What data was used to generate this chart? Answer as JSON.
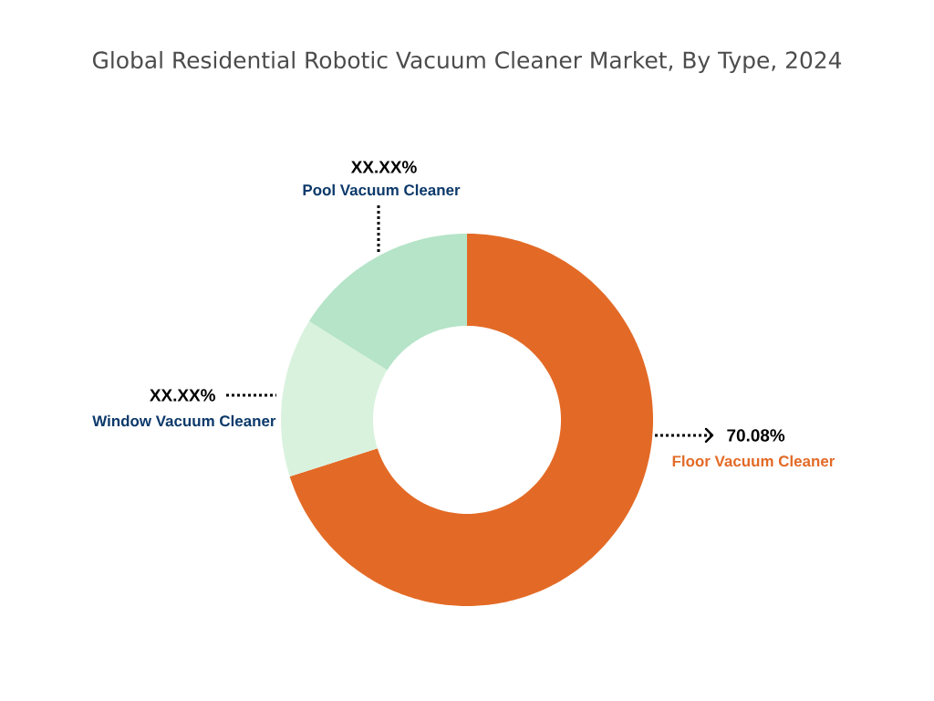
{
  "chart_data": {
    "type": "donut",
    "title": "Global Residential Robotic Vacuum Cleaner Market, By Type, 2024",
    "categories": [
      "Floor Vacuum Cleaner",
      "Window Vacuum Cleaner",
      "Pool Vacuum Cleaner"
    ],
    "values": [
      70.08,
      13.8,
      16.12
    ],
    "colors": [
      "#e36a26",
      "#d9f2de",
      "#b5e4c8"
    ],
    "value_labels": [
      "70.08%",
      "XX.XX%",
      "XX.XX%"
    ]
  }
}
